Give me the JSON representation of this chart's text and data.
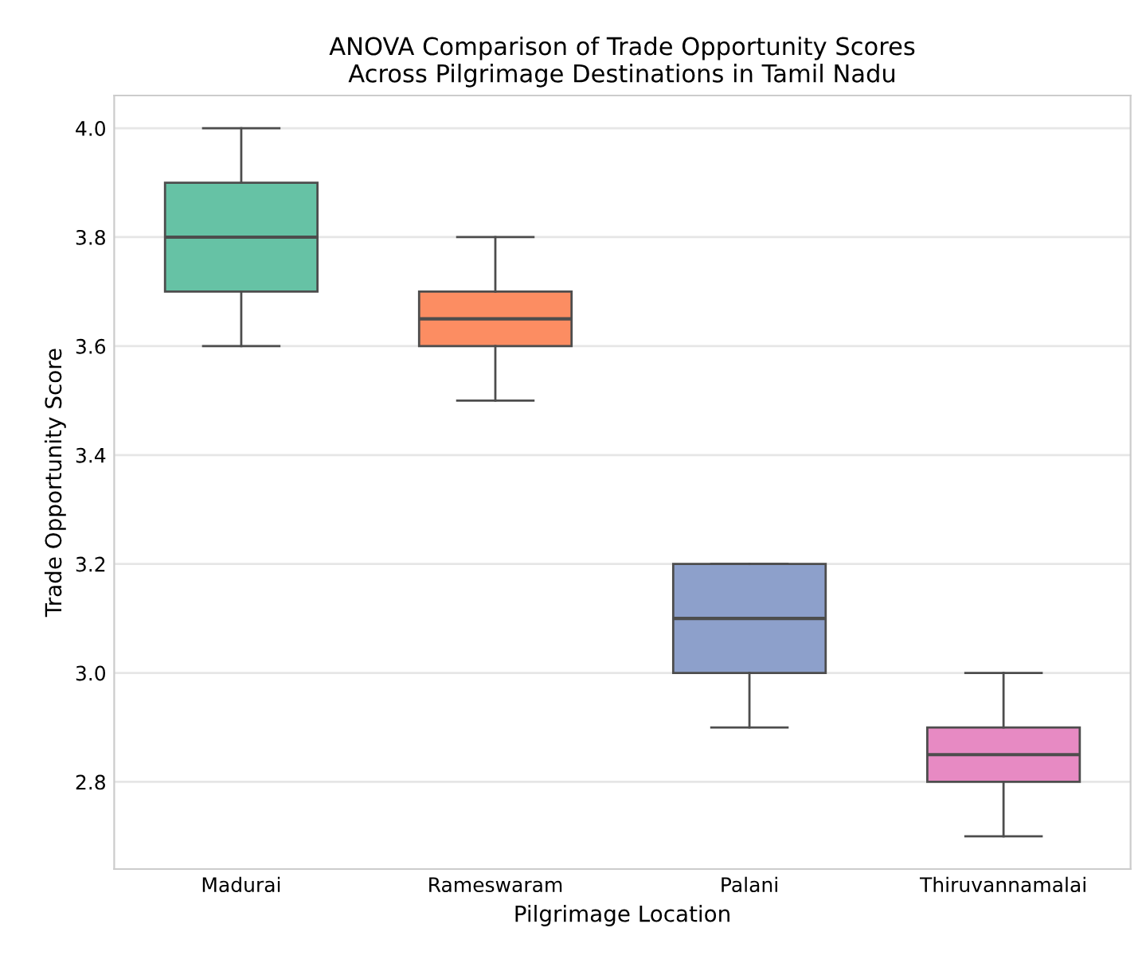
{
  "chart_data": {
    "type": "box",
    "title": "ANOVA Comparison of Trade Opportunity Scores\nAcross Pilgrimage Destinations in Tamil Nadu",
    "xlabel": "Pilgrimage Location",
    "ylabel": "Trade Opportunity Score",
    "categories": [
      "Madurai",
      "Rameswaram",
      "Palani",
      "Thiruvannamalai"
    ],
    "colors": [
      "#66c2a5",
      "#fc8d62",
      "#8da0cb",
      "#e78ac3"
    ],
    "boxes": [
      {
        "low": 3.6,
        "q1": 3.7,
        "median": 3.8,
        "q3": 3.9,
        "high": 4.0
      },
      {
        "low": 3.5,
        "q1": 3.6,
        "median": 3.65,
        "q3": 3.7,
        "high": 3.8
      },
      {
        "low": 2.9,
        "q1": 3.0,
        "median": 3.1,
        "q3": 3.2,
        "high": 3.2
      },
      {
        "low": 2.7,
        "q1": 2.8,
        "median": 2.85,
        "q3": 2.9,
        "high": 3.0
      }
    ],
    "ylim": [
      2.64,
      4.06
    ],
    "yticks": [
      {
        "value": 2.8,
        "label": "2.8"
      },
      {
        "value": 3.0,
        "label": "3.0"
      },
      {
        "value": 3.2,
        "label": "3.2"
      },
      {
        "value": 3.4,
        "label": "3.4"
      },
      {
        "value": 3.6,
        "label": "3.6"
      },
      {
        "value": 3.8,
        "label": "3.8"
      },
      {
        "value": 4.0,
        "label": "4.0"
      }
    ],
    "grid": "y"
  }
}
